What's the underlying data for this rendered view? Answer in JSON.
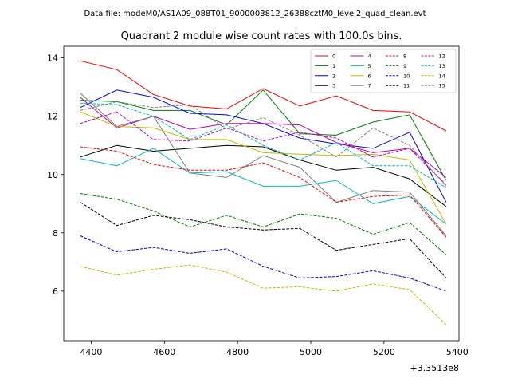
{
  "suptitle": "Data file: modeM0/AS1A09_088T01_9000003812_26388cztM0_level2_quad_clean.evt",
  "chart_data": {
    "type": "line",
    "title": "Quadrant 2 module wise count rates with 100.0s bins.",
    "xlabel": "",
    "ylabel": "",
    "x_offset_label": "+3.3513e8",
    "xlim": [
      4325,
      5405
    ],
    "ylim": [
      4.3,
      14.4
    ],
    "xticks": [
      4400,
      4600,
      4800,
      5000,
      5200,
      5400
    ],
    "yticks": [
      6,
      8,
      10,
      12,
      14
    ],
    "grid": false,
    "legend": {
      "placement": "top-right",
      "ncol": 4
    },
    "x": [
      4370,
      4470,
      4570,
      4670,
      4770,
      4870,
      4970,
      5070,
      5170,
      5270,
      5370
    ],
    "series": [
      {
        "name": "0",
        "color": "#ff0000",
        "dash": "solid",
        "values": [
          13.9,
          13.6,
          12.75,
          12.35,
          12.25,
          12.95,
          12.35,
          12.7,
          12.2,
          12.15,
          11.5
        ]
      },
      {
        "name": "1",
        "color": "#008000",
        "dash": "solid",
        "values": [
          12.55,
          12.5,
          12.2,
          12.2,
          11.7,
          12.9,
          11.4,
          11.35,
          11.8,
          12.05,
          9.8
        ]
      },
      {
        "name": "2",
        "color": "#0000ff",
        "dash": "solid",
        "values": [
          12.3,
          12.9,
          12.65,
          12.1,
          12.05,
          11.75,
          11.25,
          11.05,
          10.9,
          11.45,
          9.05
        ]
      },
      {
        "name": "3",
        "color": "#000000",
        "dash": "solid",
        "values": [
          10.6,
          11.0,
          10.8,
          10.9,
          11.0,
          10.95,
          10.5,
          10.15,
          10.25,
          9.85,
          8.9
        ]
      },
      {
        "name": "4",
        "color": "#bf00bf",
        "dash": "solid",
        "values": [
          12.65,
          11.6,
          12.0,
          11.55,
          11.75,
          11.75,
          11.7,
          11.1,
          10.75,
          10.9,
          9.9
        ]
      },
      {
        "name": "5",
        "color": "#00bfbf",
        "dash": "solid",
        "values": [
          10.55,
          10.3,
          10.9,
          10.05,
          10.1,
          9.6,
          9.6,
          9.8,
          9.0,
          9.25,
          8.3
        ]
      },
      {
        "name": "6",
        "color": "#bfbf00",
        "dash": "solid",
        "values": [
          12.15,
          11.65,
          11.6,
          11.2,
          11.2,
          10.75,
          10.7,
          10.65,
          10.7,
          10.5,
          8.3
        ]
      },
      {
        "name": "7",
        "color": "#808080",
        "dash": "solid",
        "values": [
          12.8,
          11.65,
          12.0,
          10.05,
          9.9,
          10.65,
          10.25,
          9.05,
          9.45,
          9.4,
          7.9
        ]
      },
      {
        "name": "8",
        "color": "#ff0000",
        "dash": "dashed",
        "values": [
          10.95,
          10.8,
          10.35,
          10.15,
          10.15,
          10.4,
          9.9,
          9.05,
          9.25,
          9.3,
          7.85
        ]
      },
      {
        "name": "9",
        "color": "#008000",
        "dash": "dashed",
        "values": [
          9.35,
          9.15,
          8.75,
          8.2,
          8.6,
          8.2,
          8.65,
          8.5,
          7.95,
          8.35,
          7.25
        ]
      },
      {
        "name": "10",
        "color": "#0000ff",
        "dash": "dashed",
        "values": [
          7.9,
          7.35,
          7.5,
          7.3,
          7.45,
          6.85,
          6.45,
          6.5,
          6.7,
          6.45,
          6.0
        ]
      },
      {
        "name": "11",
        "color": "#000000",
        "dash": "dashed",
        "values": [
          9.05,
          8.25,
          8.6,
          8.45,
          8.2,
          8.1,
          8.15,
          7.4,
          7.6,
          7.8,
          6.45
        ]
      },
      {
        "name": "12",
        "color": "#bf00bf",
        "dash": "dashed",
        "values": [
          11.75,
          12.15,
          11.2,
          11.15,
          11.6,
          11.15,
          11.45,
          11.25,
          10.6,
          10.9,
          9.65
        ]
      },
      {
        "name": "13",
        "color": "#00bfbf",
        "dash": "dashed",
        "values": [
          12.45,
          12.4,
          12.0,
          11.2,
          11.7,
          11.0,
          10.5,
          11.1,
          10.3,
          10.3,
          9.55
        ]
      },
      {
        "name": "14",
        "color": "#bfbf00",
        "dash": "dashed",
        "values": [
          6.85,
          6.55,
          6.75,
          6.9,
          6.65,
          6.1,
          6.15,
          6.0,
          6.25,
          6.05,
          4.85
        ]
      },
      {
        "name": "15",
        "color": "#808080",
        "dash": "dashed",
        "values": [
          12.2,
          12.5,
          12.3,
          12.4,
          11.55,
          11.95,
          11.35,
          10.6,
          11.6,
          11.0,
          9.6
        ]
      }
    ]
  }
}
